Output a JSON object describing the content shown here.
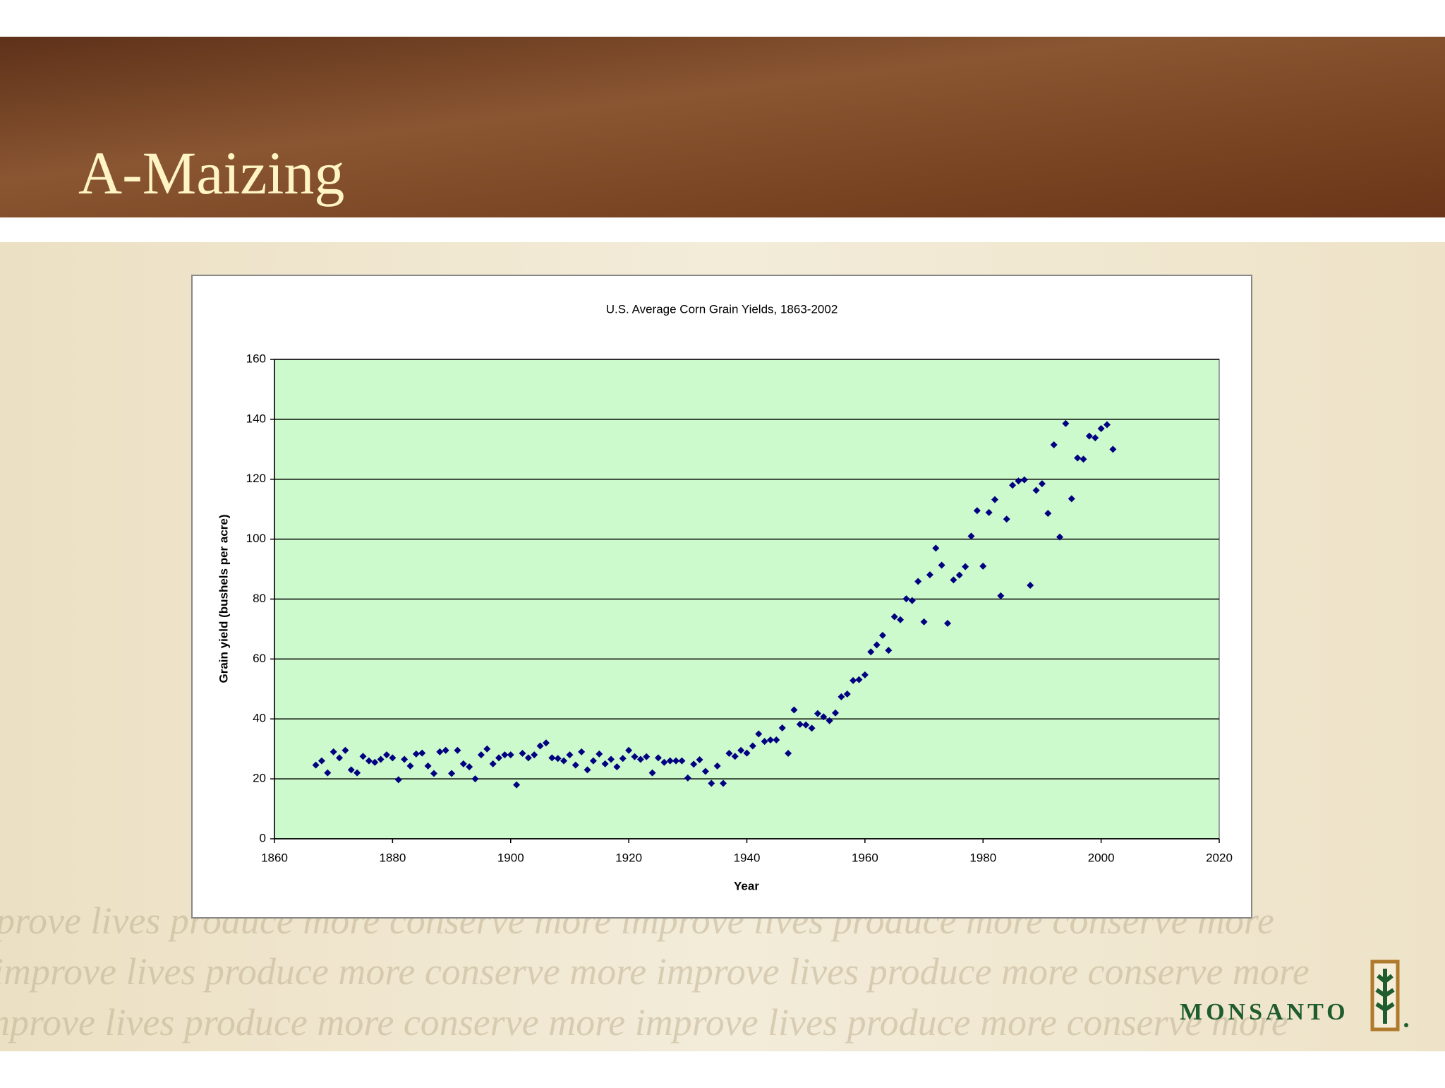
{
  "slide_title": "A-Maizing",
  "watermark": "improve lives produce more conserve more improve lives produce more conserve more",
  "logo": "MONSANTO",
  "chart_data": {
    "type": "scatter",
    "title": "U.S. Average Corn Grain Yields, 1863-2002",
    "x_label": "Year",
    "y_label": "Grain yield (bushels per acre)",
    "x": [
      1867,
      1868,
      1869,
      1870,
      1871,
      1872,
      1873,
      1874,
      1875,
      1876,
      1877,
      1878,
      1879,
      1880,
      1881,
      1882,
      1883,
      1884,
      1885,
      1886,
      1887,
      1888,
      1889,
      1890,
      1891,
      1892,
      1893,
      1894,
      1895,
      1896,
      1897,
      1898,
      1899,
      1900,
      1901,
      1902,
      1903,
      1904,
      1905,
      1906,
      1907,
      1908,
      1909,
      1910,
      1911,
      1912,
      1913,
      1914,
      1915,
      1916,
      1917,
      1918,
      1919,
      1920,
      1921,
      1922,
      1923,
      1924,
      1925,
      1926,
      1927,
      1928,
      1929,
      1930,
      1931,
      1932,
      1933,
      1934,
      1935,
      1936,
      1937,
      1938,
      1939,
      1940,
      1941,
      1942,
      1943,
      1944,
      1945,
      1946,
      1947,
      1948,
      1949,
      1950,
      1951,
      1952,
      1953,
      1954,
      1955,
      1956,
      1957,
      1958,
      1959,
      1960,
      1961,
      1962,
      1963,
      1964,
      1965,
      1966,
      1967,
      1968,
      1969,
      1970,
      1971,
      1972,
      1973,
      1974,
      1975,
      1976,
      1977,
      1978,
      1979,
      1980,
      1981,
      1982,
      1983,
      1984,
      1985,
      1986,
      1987,
      1988,
      1989,
      1990,
      1991,
      1992,
      1993,
      1994,
      1995,
      1996,
      1997,
      1998,
      1999,
      2000,
      2001,
      2002
    ],
    "values": [
      24.6,
      26,
      22,
      29,
      27,
      29.5,
      23,
      22,
      27.5,
      26,
      25.5,
      26.5,
      28,
      27,
      19.7,
      26.5,
      24.3,
      28.3,
      28.6,
      24.3,
      21.8,
      29,
      29.5,
      21.8,
      29.5,
      25,
      24,
      20,
      28,
      30,
      25,
      27,
      28,
      28,
      18,
      28.5,
      27,
      28,
      31,
      32,
      27,
      26.8,
      26,
      28,
      24.6,
      29,
      23,
      26,
      28.3,
      25,
      26.5,
      24,
      26.8,
      29.5,
      27.4,
      26.5,
      27.4,
      22,
      27,
      25.5,
      26,
      26,
      26,
      20.3,
      24.9,
      26.4,
      22.5,
      18.5,
      24.3,
      18.5,
      28.5,
      27.5,
      29.5,
      28.6,
      31,
      35,
      32.5,
      33,
      33,
      37,
      28.5,
      43,
      38.2,
      38,
      36.9,
      41.8,
      40.7,
      39.4,
      42,
      47.4,
      48.3,
      52.8,
      53.1,
      54.7,
      62.4,
      64.7,
      67.9,
      62.9,
      74.1,
      73.1,
      80.1,
      79.5,
      85.9,
      72.4,
      88.1,
      97,
      91.3,
      71.9,
      86.4,
      88,
      90.8,
      101,
      109.5,
      91,
      108.9,
      113.2,
      81.1,
      106.7,
      118,
      119.4,
      119.8,
      84.6,
      116.3,
      118.5,
      108.6,
      131.5,
      100.7,
      138.6,
      113.5,
      127.1,
      126.7,
      134.4,
      133.8,
      136.9,
      138.2,
      130
    ],
    "color": "#000080",
    "xlim": [
      1860,
      2020
    ],
    "xticks": [
      1860,
      1880,
      1900,
      1920,
      1940,
      1960,
      1980,
      2000,
      2020
    ],
    "ylim": [
      0,
      160
    ],
    "yticks": [
      0,
      20,
      40,
      60,
      80,
      100,
      120,
      140,
      160
    ],
    "grid": true
  }
}
